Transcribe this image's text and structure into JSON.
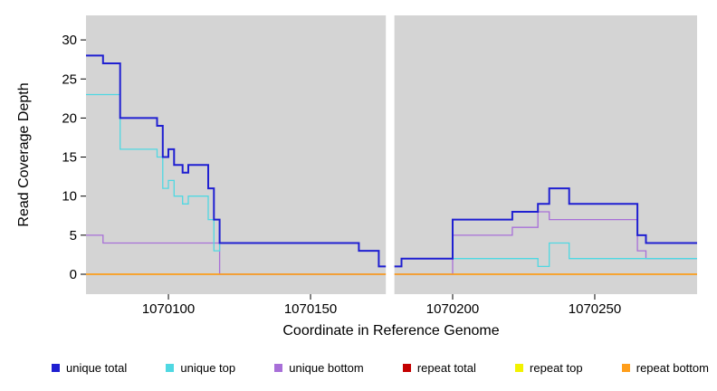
{
  "figure": {
    "bg": "#ffffff",
    "plot_bg": "#d4d4d4",
    "gap_color": "#ffffff",
    "axis_color": "#000000"
  },
  "chart_data": {
    "type": "line",
    "title": "",
    "xlabel": "Coordinate in Reference Genome",
    "ylabel": "Read Coverage Depth",
    "xlim": [
      1070071,
      1070286
    ],
    "ylim": [
      0,
      33
    ],
    "xticks": [
      1070100,
      1070150,
      1070200,
      1070250
    ],
    "yticks": [
      0,
      5,
      10,
      15,
      20,
      25,
      30
    ],
    "grid": false,
    "legend_position": "bottom",
    "gap_region": [
      1070176.5,
      1070179.5
    ],
    "series": [
      {
        "name": "unique total",
        "color": "#1f1fd1",
        "width": 2,
        "steps": [
          [
            1070071,
            28
          ],
          [
            1070077,
            27
          ],
          [
            1070083,
            20
          ],
          [
            1070096,
            19
          ],
          [
            1070098,
            15
          ],
          [
            1070100,
            16
          ],
          [
            1070102,
            14
          ],
          [
            1070105,
            13
          ],
          [
            1070107,
            14
          ],
          [
            1070114,
            11
          ],
          [
            1070116,
            7
          ],
          [
            1070118,
            4
          ],
          [
            1070167,
            3
          ],
          [
            1070174,
            1
          ],
          [
            1070179,
            1
          ],
          [
            1070182,
            2
          ],
          [
            1070200,
            7
          ],
          [
            1070221,
            8
          ],
          [
            1070230,
            9
          ],
          [
            1070234,
            11
          ],
          [
            1070241,
            9
          ],
          [
            1070265,
            5
          ],
          [
            1070268,
            4
          ],
          [
            1070286,
            4
          ]
        ]
      },
      {
        "name": "unique top",
        "color": "#4fd8e2",
        "width": 1.3,
        "steps": [
          [
            1070071,
            23
          ],
          [
            1070083,
            16
          ],
          [
            1070096,
            15
          ],
          [
            1070098,
            11
          ],
          [
            1070100,
            12
          ],
          [
            1070102,
            10
          ],
          [
            1070105,
            9
          ],
          [
            1070107,
            10
          ],
          [
            1070114,
            7
          ],
          [
            1070116,
            3
          ],
          [
            1070118,
            4
          ],
          [
            1070167,
            3
          ],
          [
            1070174,
            1
          ],
          [
            1070179,
            1
          ],
          [
            1070182,
            2
          ],
          [
            1070200,
            2
          ],
          [
            1070230,
            1
          ],
          [
            1070234,
            4
          ],
          [
            1070241,
            2
          ],
          [
            1070286,
            2
          ]
        ]
      },
      {
        "name": "unique bottom",
        "color": "#a86fd8",
        "width": 1.3,
        "steps": [
          [
            1070071,
            5
          ],
          [
            1070077,
            4
          ],
          [
            1070118,
            0
          ],
          [
            1070179,
            0
          ],
          [
            1070200,
            5
          ],
          [
            1070221,
            6
          ],
          [
            1070230,
            8
          ],
          [
            1070234,
            7
          ],
          [
            1070265,
            3
          ],
          [
            1070268,
            2
          ],
          [
            1070286,
            2
          ]
        ]
      },
      {
        "name": "repeat total",
        "color": "#c40000",
        "width": 1.3,
        "steps": [
          [
            1070071,
            0
          ],
          [
            1070286,
            0
          ]
        ]
      },
      {
        "name": "repeat top",
        "color": "#f2f200",
        "width": 1.3,
        "steps": [
          [
            1070071,
            0
          ],
          [
            1070286,
            0
          ]
        ]
      },
      {
        "name": "repeat bottom",
        "color": "#ff9e1b",
        "width": 1.6,
        "steps": [
          [
            1070071,
            0
          ],
          [
            1070286,
            0
          ]
        ]
      }
    ],
    "draw_order": [
      3,
      4,
      2,
      1,
      0,
      5
    ]
  }
}
